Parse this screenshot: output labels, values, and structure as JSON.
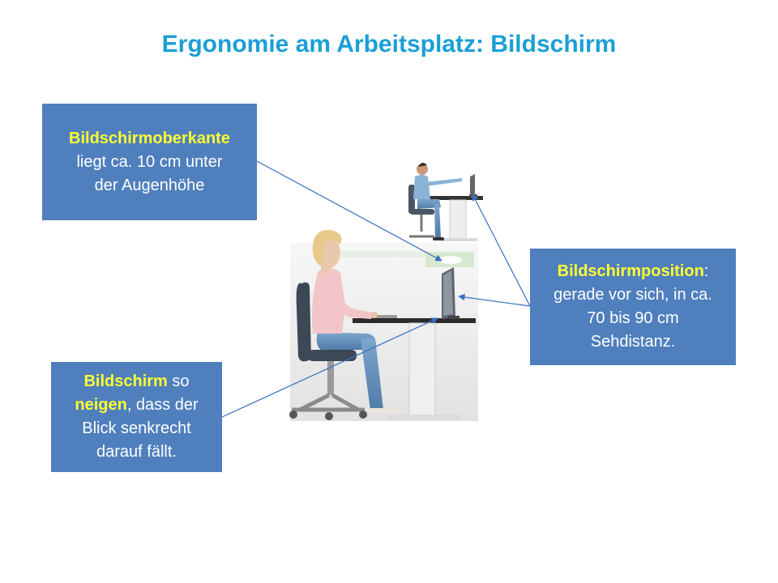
{
  "title": "Ergonomie am Arbeitsplatz:  Bildschirm",
  "colors": {
    "title": "#1a9fd6",
    "box_bg": "#4f7fbd",
    "box_text": "#ffffff",
    "highlight": "#ffff33",
    "connector": "#3a6fc0"
  },
  "callouts": {
    "top_left": {
      "highlight": "Bildschirmoberkante",
      "line1": "liegt ca. 10 cm unter",
      "line2": "der Augenhöhe"
    },
    "right": {
      "highlight": "Bildschirmposition",
      "after_highlight": ":",
      "line1": "gerade vor sich, in ca.",
      "line2": "70 bis 90 cm",
      "line3": "Sehdistanz."
    },
    "bottom_left": {
      "highlight1": "Bildschirm",
      "after1": " so",
      "highlight2": "neigen",
      "after2": ", dass der",
      "line3": "Blick senkrecht",
      "line4": "darauf fällt."
    }
  }
}
